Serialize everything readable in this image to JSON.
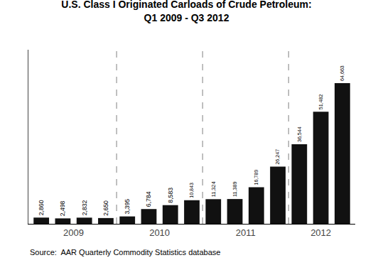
{
  "chart_data": {
    "type": "bar",
    "title": "U.S. Class I Originated Carloads of Crude Petroleum:\nQ1 2009 - Q3 2012",
    "categories": [
      "2009",
      null,
      null,
      null,
      "2010",
      null,
      null,
      null,
      "2011",
      null,
      null,
      null,
      "2012",
      null,
      null
    ],
    "values": [
      2860,
      2498,
      2832,
      2650,
      3395,
      6784,
      8583,
      10843,
      11324,
      11389,
      16789,
      26247,
      36544,
      51482,
      64663
    ],
    "value_labels": [
      "2,860",
      "2,498",
      "2,832",
      "2,650",
      "3,395",
      "6,784",
      "8,583",
      "10,843",
      "11,324",
      "11,389",
      "16,789",
      "26,247",
      "36,544",
      "51,482",
      "64,663"
    ],
    "data_labels": true,
    "color": "#111111",
    "ylim": [
      0,
      80000
    ],
    "tick_labels": "x",
    "grid": false,
    "annotations": [
      "Source:  AAR Quarterly Commodity Statistics database"
    ]
  }
}
